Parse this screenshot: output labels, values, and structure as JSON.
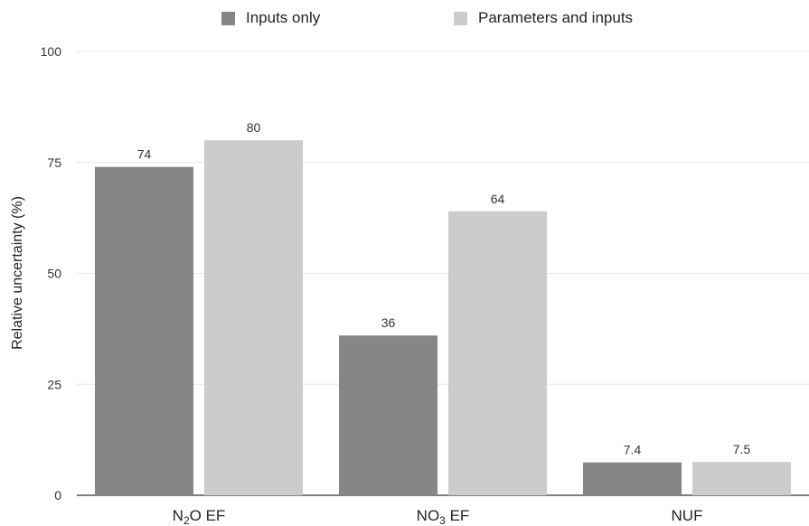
{
  "chart_data": {
    "type": "bar",
    "categories": [
      {
        "main": "N",
        "sub": "2",
        "rest": "O EF"
      },
      {
        "main": "NO",
        "sub": "3",
        "rest": " EF"
      },
      {
        "main": "NUF",
        "sub": "",
        "rest": ""
      }
    ],
    "series": [
      {
        "name": "Inputs only",
        "values": [
          74,
          36,
          7.4
        ],
        "labels": [
          "74",
          "36",
          "7.4"
        ],
        "color": "#868686"
      },
      {
        "name": "Parameters and inputs",
        "values": [
          80,
          64,
          7.5
        ],
        "labels": [
          "80",
          "64",
          "7.5"
        ],
        "color": "#cccccc"
      }
    ],
    "ylabel": "Relative uncertainty (%)",
    "ylim": [
      0,
      100
    ],
    "yticks": [
      0,
      25,
      50,
      75,
      100
    ],
    "grid": true,
    "legend_position": "top"
  }
}
